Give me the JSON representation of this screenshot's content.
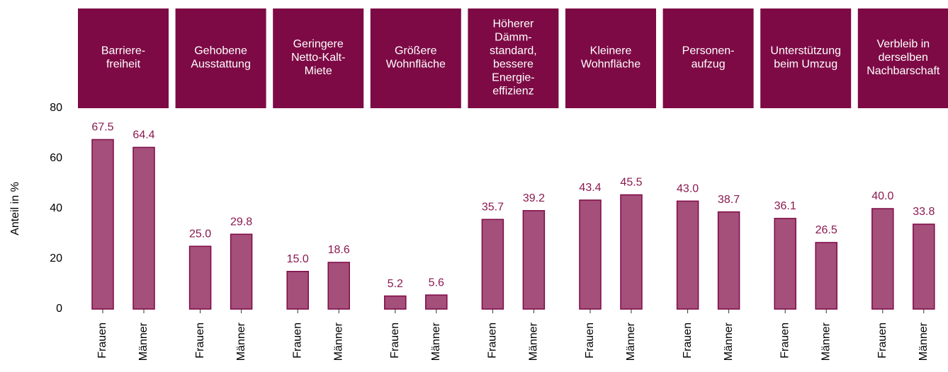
{
  "chart_data": {
    "type": "bar",
    "ylabel": "Anteil in %",
    "ylim": [
      0,
      80
    ],
    "yticks": [
      0,
      20,
      40,
      60,
      80
    ],
    "grid": false,
    "header_color": "#7d0a45",
    "color": "#a54f7b",
    "edge_color": "#7d0a45",
    "label_color": "#8a1850",
    "panels": [
      {
        "title": [
          "Barriere-",
          "freiheit"
        ],
        "categories": [
          "Frauen",
          "Männer"
        ],
        "values": [
          67.5,
          64.4
        ],
        "value_labels": [
          "67.5",
          "64.4"
        ]
      },
      {
        "title": [
          "Gehobene",
          "Ausstattung"
        ],
        "categories": [
          "Frauen",
          "Männer"
        ],
        "values": [
          25.0,
          29.8
        ],
        "value_labels": [
          "25.0",
          "29.8"
        ]
      },
      {
        "title": [
          "Geringere",
          "Netto-Kalt-",
          "Miete"
        ],
        "categories": [
          "Frauen",
          "Männer"
        ],
        "values": [
          15.0,
          18.6
        ],
        "value_labels": [
          "15.0",
          "18.6"
        ]
      },
      {
        "title": [
          "Größere",
          "Wohnfläche"
        ],
        "categories": [
          "Frauen",
          "Männer"
        ],
        "values": [
          5.2,
          5.6
        ],
        "value_labels": [
          "5.2",
          "5.6"
        ]
      },
      {
        "title": [
          "Höherer",
          "Dämm-",
          "standard,",
          "bessere",
          "Energie-",
          "effizienz"
        ],
        "categories": [
          "Frauen",
          "Männer"
        ],
        "values": [
          35.7,
          39.2
        ],
        "value_labels": [
          "35.7",
          "39.2"
        ]
      },
      {
        "title": [
          "Kleinere",
          "Wohnfläche"
        ],
        "categories": [
          "Frauen",
          "Männer"
        ],
        "values": [
          43.4,
          45.5
        ],
        "value_labels": [
          "43.4",
          "45.5"
        ]
      },
      {
        "title": [
          "Personen-",
          "aufzug"
        ],
        "categories": [
          "Frauen",
          "Männer"
        ],
        "values": [
          43.0,
          38.7
        ],
        "value_labels": [
          "43.0",
          "38.7"
        ]
      },
      {
        "title": [
          "Unterstützung",
          "beim Umzug"
        ],
        "categories": [
          "Frauen",
          "Männer"
        ],
        "values": [
          36.1,
          26.5
        ],
        "value_labels": [
          "36.1",
          "26.5"
        ]
      },
      {
        "title": [
          "Verbleib in",
          "derselben",
          "Nachbarschaft"
        ],
        "categories": [
          "Frauen",
          "Männer"
        ],
        "values": [
          40.0,
          33.8
        ],
        "value_labels": [
          "40.0",
          "33.8"
        ]
      }
    ]
  }
}
